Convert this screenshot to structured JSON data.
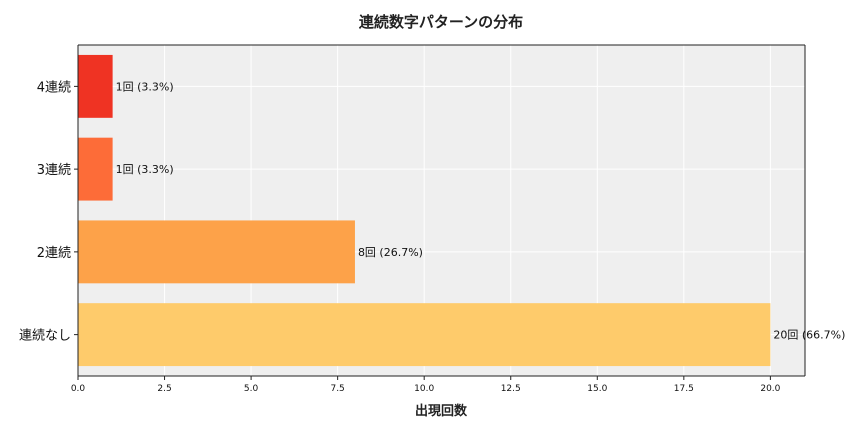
{
  "chart_data": {
    "type": "bar",
    "orientation": "horizontal",
    "title": "連続数字パターンの分布",
    "xlabel": "出現回数",
    "ylabel": "",
    "categories": [
      "4連続",
      "3連続",
      "2連続",
      "連続なし"
    ],
    "values": [
      1,
      1,
      8,
      20
    ],
    "data_labels": [
      "1回 (3.3%)",
      "1回 (3.3%)",
      "8回 (26.7%)",
      "20回 (66.7%)"
    ],
    "colors": [
      "#ef3323",
      "#fd6c38",
      "#fda249",
      "#fecb6b"
    ],
    "xlim": [
      0,
      21
    ],
    "xticks": [
      0,
      2.5,
      5,
      7.5,
      10,
      12.5,
      15,
      17.5,
      20
    ],
    "xtick_labels": [
      "0.0",
      "2.5",
      "5.0",
      "7.5",
      "10.0",
      "12.5",
      "15.0",
      "17.5",
      "20.0"
    ],
    "grid": true,
    "plot_background": "#efefef"
  }
}
